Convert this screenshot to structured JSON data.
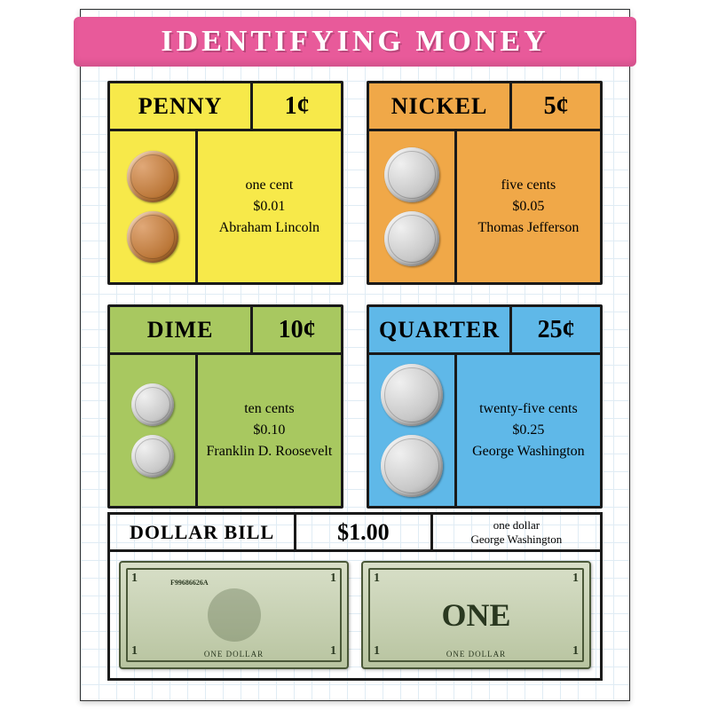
{
  "title": "IDENTIFYING MONEY",
  "title_bg": "#e85a9a",
  "grid_color": "#e0ecf4",
  "cards": [
    {
      "name": "PENNY",
      "value": "1¢",
      "words": "one cent",
      "decimal": "$0.01",
      "person": "Abraham Lincoln",
      "bg": "#f7e94a",
      "smudge": "#f7e94a",
      "coin_color": "copper",
      "coin_size": 58
    },
    {
      "name": "NICKEL",
      "value": "5¢",
      "words": "five cents",
      "decimal": "$0.05",
      "person": "Thomas Jefferson",
      "bg": "#f0a848",
      "smudge": "#f0a848",
      "coin_color": "silver",
      "coin_size": 62
    },
    {
      "name": "DIME",
      "value": "10¢",
      "words": "ten cents",
      "decimal": "$0.10",
      "person": "Franklin D. Roosevelt",
      "bg": "#a8c860",
      "smudge": "#a8c860",
      "coin_color": "silver",
      "coin_size": 48
    },
    {
      "name": "QUARTER",
      "value": "25¢",
      "words": "twenty-five cents",
      "decimal": "$0.25",
      "person": "George Washington",
      "bg": "#5fb8e8",
      "smudge": "#5fb8e8",
      "coin_color": "silver",
      "coin_size": 70
    }
  ],
  "dollar": {
    "name": "DOLLAR BILL",
    "value": "$1.00",
    "words": "one dollar",
    "person": "George Washington",
    "bg": "#b794c9",
    "bill_label": "ONE DOLLAR",
    "bill_back": "ONE",
    "serial": "F99686626A"
  }
}
